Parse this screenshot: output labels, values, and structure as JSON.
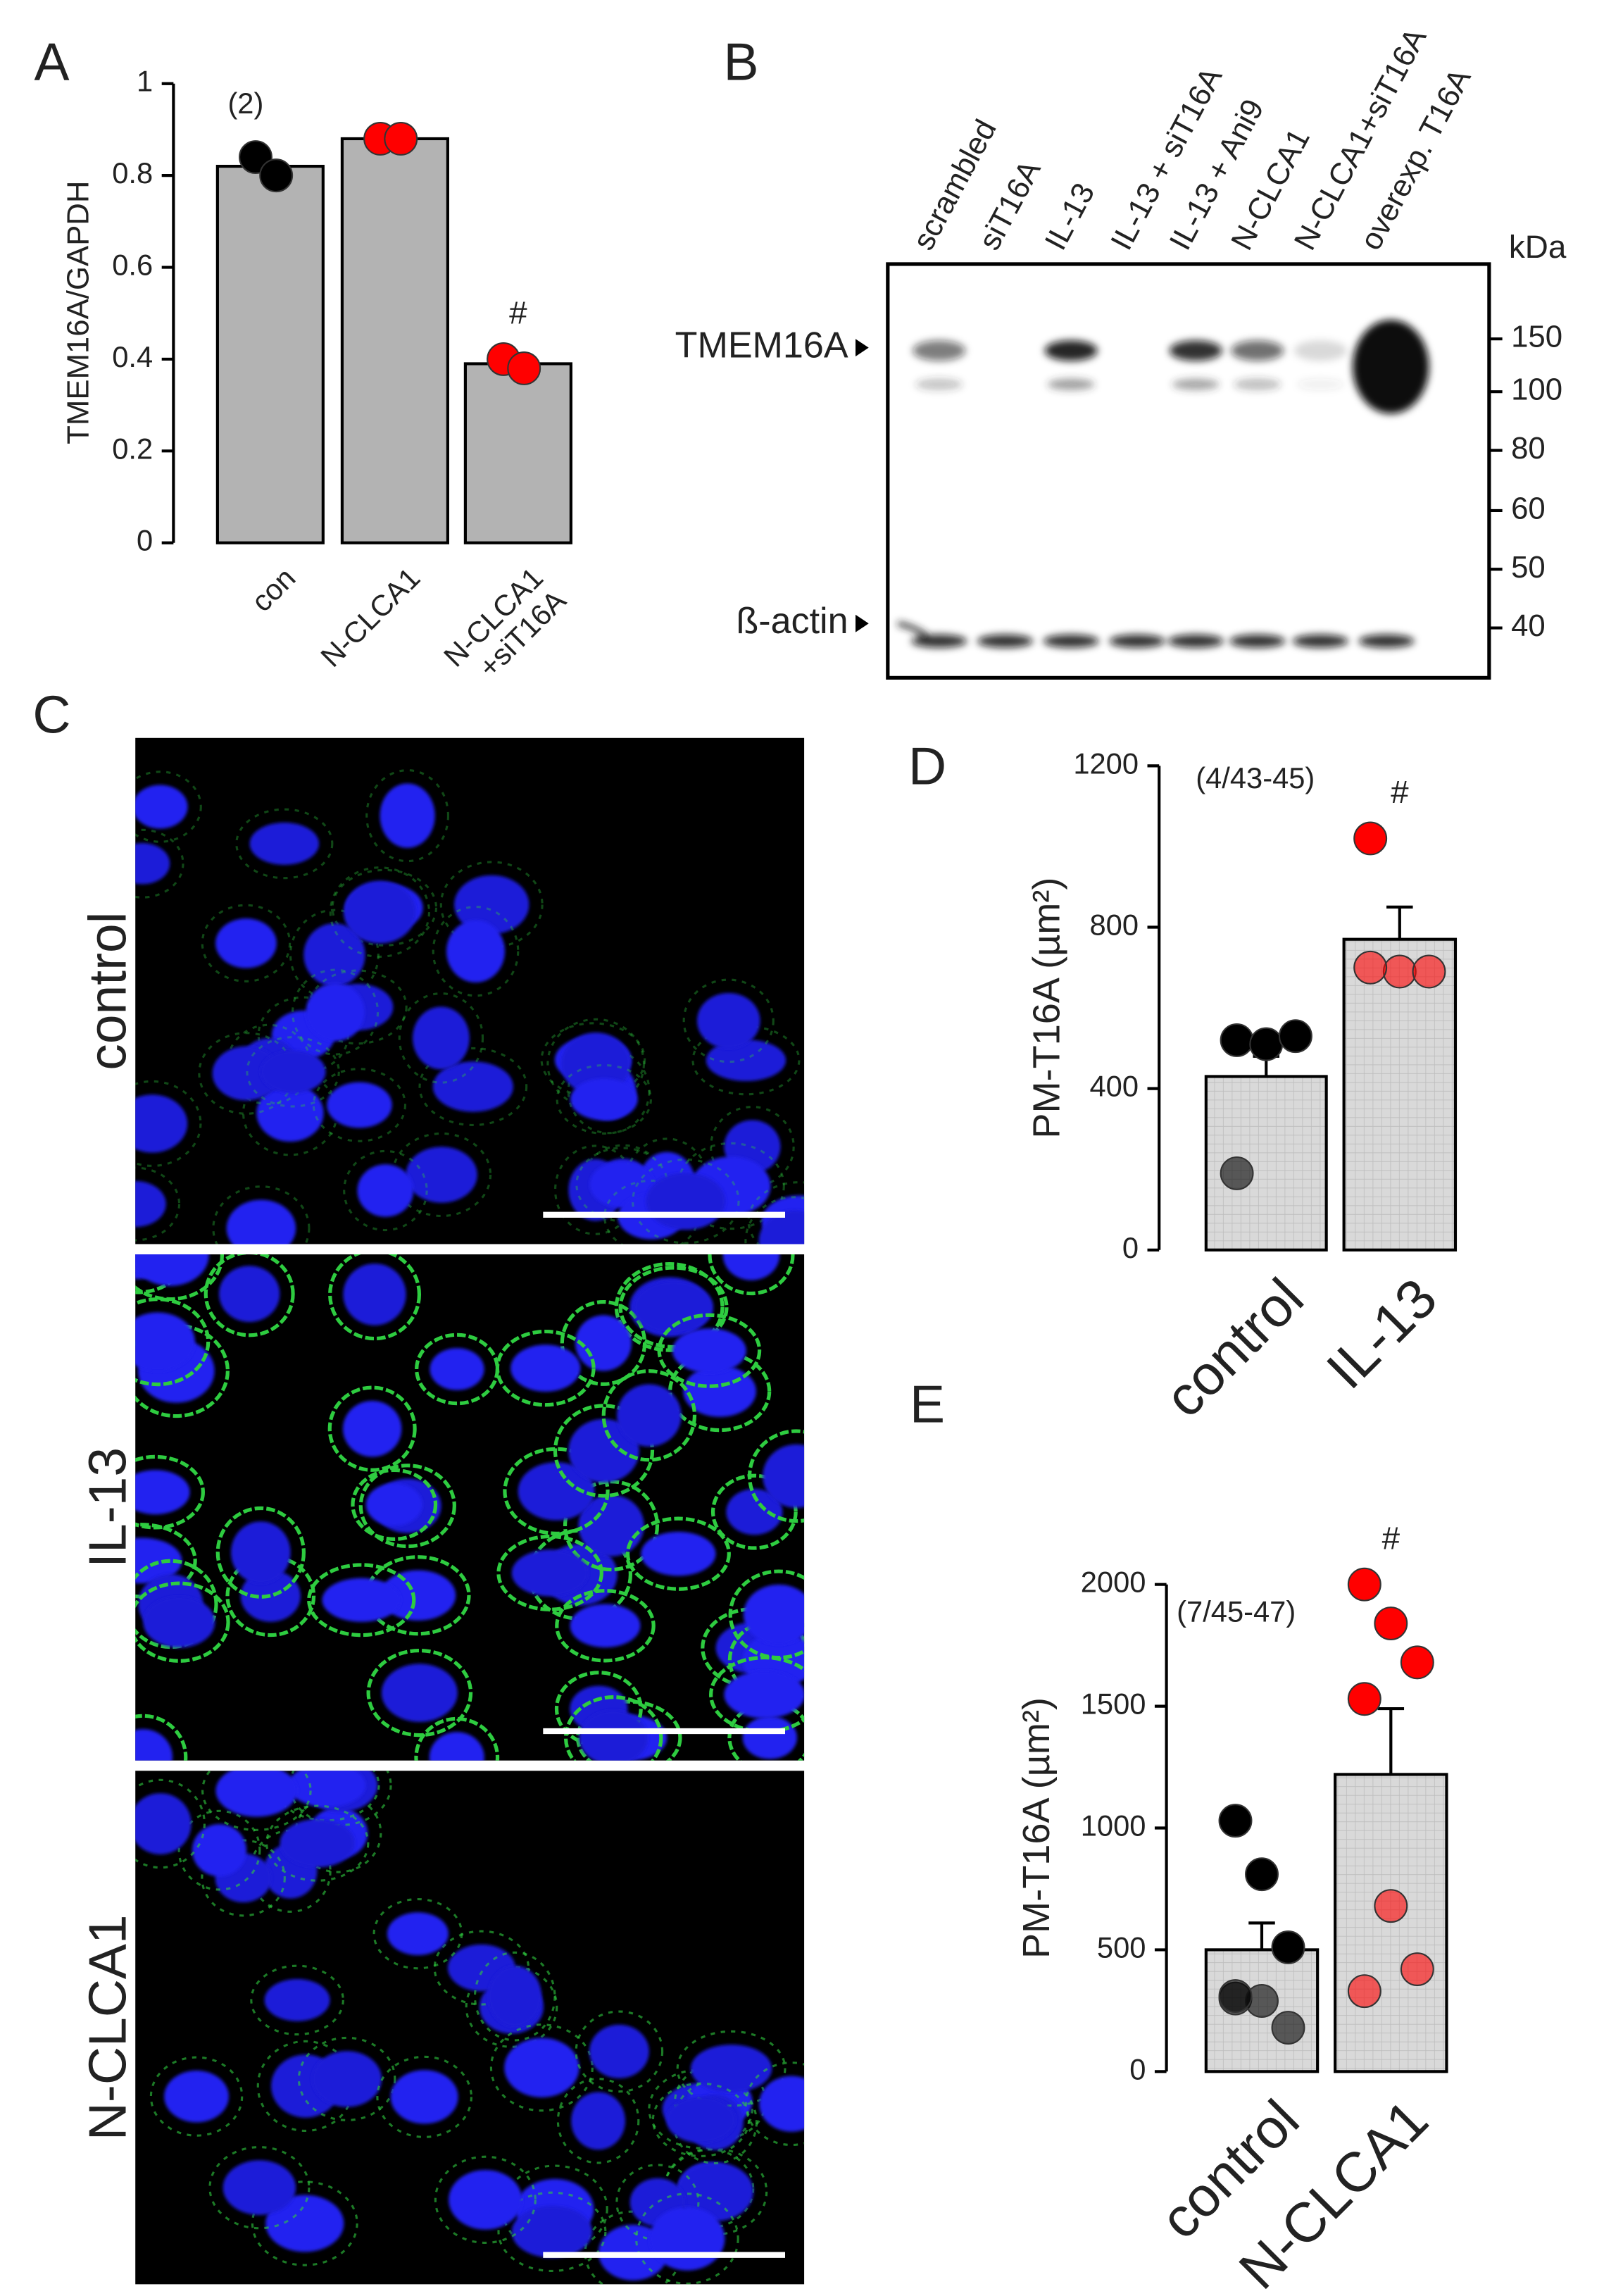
{
  "chart_data": [
    {
      "type": "bar",
      "label": "A",
      "y_label": "TMEM16A/GAPDH",
      "annotation": "(2)",
      "categories": [
        "con",
        "N-CLCA1",
        "N-CLCA1\n+siT16A"
      ],
      "values": [
        0.82,
        0.88,
        0.39
      ],
      "points": [
        [
          0.84,
          0.8
        ],
        [
          0.88,
          0.88
        ],
        [
          0.4,
          0.38
        ]
      ],
      "colors": [
        "#000000",
        "#ff0000",
        "#ff0000"
      ],
      "significance": [
        null,
        null,
        "#"
      ],
      "bar_color": "#b3b3b3",
      "ylim": [
        0,
        1
      ],
      "yticks": [
        0,
        0.2,
        0.4,
        0.6,
        0.8,
        1
      ]
    },
    {
      "type": "bar",
      "label": "D",
      "y_label": "PM-T16A (µm²)",
      "annotation": "(4/43-45)",
      "categories": [
        "control",
        "IL-13"
      ],
      "values": [
        430,
        770
      ],
      "errors": [
        50,
        80
      ],
      "points": [
        [
          520,
          510,
          530,
          190
        ],
        [
          1020,
          690,
          690,
          700
        ]
      ],
      "colors": [
        "#000000",
        "#ff0000"
      ],
      "significance": [
        null,
        "#"
      ],
      "bar_color": "#d9d9d9",
      "grid_fill": true,
      "ylim": [
        0,
        1200
      ],
      "yticks": [
        0,
        400,
        800,
        1200
      ]
    },
    {
      "type": "bar",
      "label": "E",
      "y_label": "PM-T16A (µm²)",
      "annotation": "(7/45-47)",
      "categories": [
        "control",
        "N-CLCA1"
      ],
      "values": [
        500,
        1220
      ],
      "errors": [
        110,
        270
      ],
      "points": [
        [
          1030,
          810,
          510,
          300,
          290,
          180,
          310
        ],
        [
          2000,
          1840,
          1680,
          1530,
          680,
          420,
          330
        ]
      ],
      "colors": [
        "#000000",
        "#ff0000"
      ],
      "significance": [
        null,
        "#"
      ],
      "bar_color": "#d9d9d9",
      "grid_fill": true,
      "ylim": [
        0,
        2000
      ],
      "yticks": [
        0,
        500,
        1000,
        1500,
        2000
      ]
    }
  ],
  "blot": {
    "label": "B",
    "lanes": [
      "scrambled",
      "siT16A",
      "IL-13",
      "IL-13 + siT16A",
      "IL-13 + Ani9",
      "N-CLCA1",
      "N-CLCA1+siT16A",
      "overexp. T16A"
    ],
    "unit": "kDa",
    "markers": [
      "150",
      "100",
      "80",
      "60",
      "50",
      "40"
    ],
    "bands": [
      "TMEM16A",
      "ß-actin"
    ]
  },
  "images": {
    "label": "C",
    "rows": [
      "control",
      "IL-13",
      "N-CLCA1"
    ]
  }
}
